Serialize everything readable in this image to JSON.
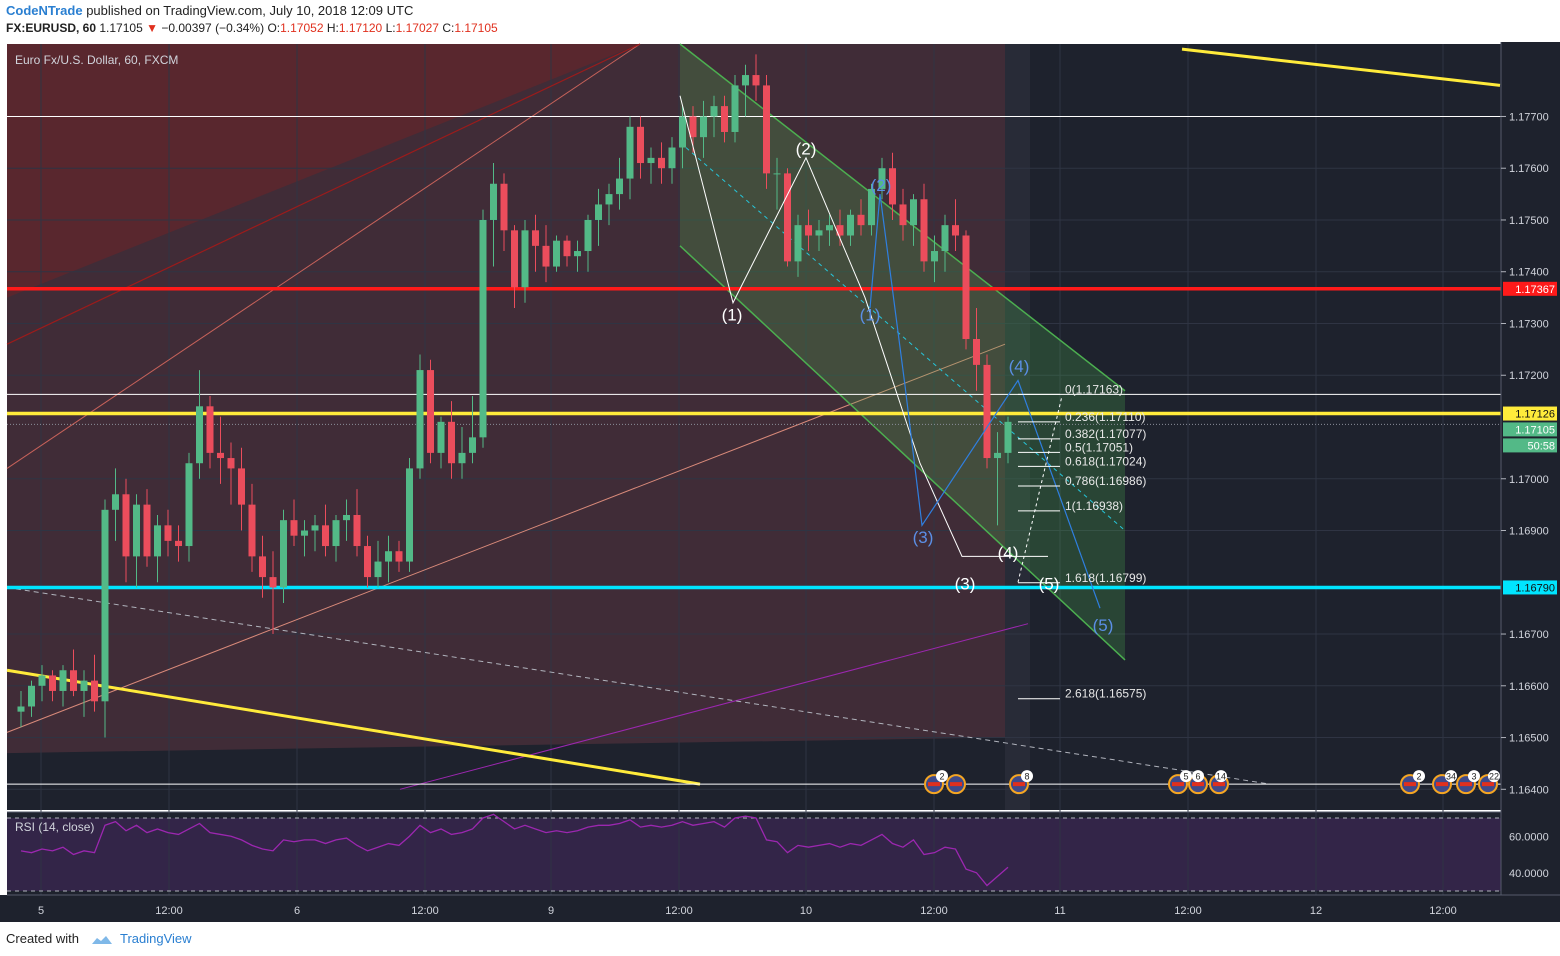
{
  "header": {
    "author": "CodeNTrade",
    "published_text": "published on TradingView.com, July 10, 2018 12:09 UTC",
    "symbol": "FX:EURUSD, 60",
    "last": "1.17105",
    "change": "−0.00397 (−0.34%)",
    "O_label": "O:",
    "O": "1.17052",
    "H_label": "H:",
    "H": "1.17120",
    "L_label": "L:",
    "L": "1.17027",
    "C_label": "C:",
    "C": "1.17105"
  },
  "footer": {
    "created_with": "Created with",
    "brand": "TradingView"
  },
  "colors": {
    "background": "#1e222d",
    "up": "#53b987",
    "down": "#eb4d5c",
    "red_line": "#ff1a1a",
    "yellow_line": "#ffeb3b",
    "cyan_line": "#00e5ff",
    "green_channel": "#4caf50",
    "rsi_line": "#9c27b0"
  },
  "chart_data": {
    "type": "candlestick",
    "title": "Euro Fx/U.S. Dollar, 60, FXCM",
    "y_axis_ticks": [
      "1.17700",
      "1.17600",
      "1.17500",
      "1.17400",
      "1.17300",
      "1.17200",
      "1.17000",
      "1.16900",
      "1.16700",
      "1.16600",
      "1.16500",
      "1.16400"
    ],
    "y_range": [
      1.1636,
      1.1784
    ],
    "x_axis_labels": [
      "5",
      "12:00",
      "6",
      "12:00",
      "9",
      "12:00",
      "10",
      "12:00",
      "11",
      "12:00",
      "12",
      "12:00"
    ],
    "price_tags": [
      {
        "value": "1.17367",
        "color": "#ff1a1a"
      },
      {
        "value": "1.17126",
        "color": "#ffeb3b"
      },
      {
        "value": "1.17105",
        "color": "#53b987"
      },
      {
        "value": "50:58",
        "color": "#53b987"
      },
      {
        "value": "1.16790",
        "color": "#00e5ff"
      }
    ],
    "horizontal_levels": [
      {
        "price": 1.17367,
        "color": "#ff1a1a"
      },
      {
        "price": 1.17126,
        "color": "#ffeb3b"
      },
      {
        "price": 1.1679,
        "color": "#00e5ff"
      },
      {
        "price": 1.177,
        "color": "#ffffff"
      },
      {
        "price": 1.17163,
        "color": "#ffffff"
      },
      {
        "price": 1.1641,
        "color": "#ffffff"
      }
    ],
    "fib_levels": [
      {
        "label": "0(1.17163)",
        "price": 1.17163
      },
      {
        "label": "0.236(1.17110)",
        "price": 1.1711
      },
      {
        "label": "0.382(1.17077)",
        "price": 1.17077
      },
      {
        "label": "0.5(1.17051)",
        "price": 1.17051
      },
      {
        "label": "0.618(1.17024)",
        "price": 1.17024
      },
      {
        "label": "0.786(1.16986)",
        "price": 1.16986
      },
      {
        "label": "1(1.16938)",
        "price": 1.16938
      },
      {
        "label": "1.618(1.16799)",
        "price": 1.16799
      },
      {
        "label": "2.618(1.16575)",
        "price": 1.16575
      }
    ],
    "wave_labels_white": [
      "(1)",
      "(2)",
      "(3)",
      "(4)",
      "(5)"
    ],
    "wave_labels_blue": [
      "(1)",
      "(2)",
      "(3)",
      "(4)",
      "(5)"
    ],
    "candles": [
      [
        1.1655,
        1.1659,
        1.1652,
        1.1656
      ],
      [
        1.1656,
        1.1661,
        1.1654,
        1.166
      ],
      [
        1.166,
        1.1664,
        1.1657,
        1.1662
      ],
      [
        1.1662,
        1.1663,
        1.1657,
        1.1659
      ],
      [
        1.1659,
        1.1664,
        1.1656,
        1.1663
      ],
      [
        1.1663,
        1.1667,
        1.1658,
        1.1659
      ],
      [
        1.1659,
        1.1663,
        1.1654,
        1.1661
      ],
      [
        1.1661,
        1.1666,
        1.1655,
        1.1657
      ],
      [
        1.1657,
        1.1696,
        1.165,
        1.1694
      ],
      [
        1.1694,
        1.1702,
        1.1688,
        1.1697
      ],
      [
        1.1697,
        1.17,
        1.168,
        1.1685
      ],
      [
        1.1685,
        1.1697,
        1.1679,
        1.1695
      ],
      [
        1.1695,
        1.1698,
        1.1683,
        1.1685
      ],
      [
        1.1685,
        1.1693,
        1.168,
        1.1691
      ],
      [
        1.1691,
        1.1694,
        1.1685,
        1.1688
      ],
      [
        1.1688,
        1.1691,
        1.1684,
        1.1687
      ],
      [
        1.1687,
        1.1705,
        1.1684,
        1.1703
      ],
      [
        1.1703,
        1.1721,
        1.17,
        1.1714
      ],
      [
        1.1714,
        1.1716,
        1.1702,
        1.1705
      ],
      [
        1.1705,
        1.1712,
        1.1699,
        1.1704
      ],
      [
        1.1704,
        1.1707,
        1.1695,
        1.1702
      ],
      [
        1.1702,
        1.1706,
        1.169,
        1.1695
      ],
      [
        1.1695,
        1.1699,
        1.1682,
        1.1685
      ],
      [
        1.1685,
        1.1689,
        1.1677,
        1.1681
      ],
      [
        1.1681,
        1.1686,
        1.167,
        1.1679
      ],
      [
        1.1679,
        1.1694,
        1.1676,
        1.1692
      ],
      [
        1.1692,
        1.1696,
        1.1687,
        1.1689
      ],
      [
        1.1689,
        1.1692,
        1.1685,
        1.169
      ],
      [
        1.169,
        1.1693,
        1.1686,
        1.1691
      ],
      [
        1.1691,
        1.1695,
        1.1685,
        1.1687
      ],
      [
        1.1687,
        1.1693,
        1.1684,
        1.1692
      ],
      [
        1.1692,
        1.1696,
        1.1688,
        1.1693
      ],
      [
        1.1693,
        1.1698,
        1.1685,
        1.1687
      ],
      [
        1.1687,
        1.1689,
        1.1679,
        1.1681
      ],
      [
        1.1681,
        1.1688,
        1.1679,
        1.1684
      ],
      [
        1.1684,
        1.1689,
        1.168,
        1.1686
      ],
      [
        1.1686,
        1.1688,
        1.1682,
        1.1684
      ],
      [
        1.1684,
        1.1704,
        1.1682,
        1.1702
      ],
      [
        1.1702,
        1.1724,
        1.17,
        1.1721
      ],
      [
        1.1721,
        1.1723,
        1.1703,
        1.1705
      ],
      [
        1.1705,
        1.1712,
        1.1702,
        1.1711
      ],
      [
        1.1711,
        1.1715,
        1.17,
        1.1703
      ],
      [
        1.1703,
        1.171,
        1.17,
        1.1705
      ],
      [
        1.1705,
        1.1716,
        1.1703,
        1.1708
      ],
      [
        1.1708,
        1.1752,
        1.1706,
        1.175
      ],
      [
        1.175,
        1.1761,
        1.1741,
        1.1757
      ],
      [
        1.1757,
        1.1759,
        1.1744,
        1.1748
      ],
      [
        1.1748,
        1.1749,
        1.1733,
        1.1737
      ],
      [
        1.1737,
        1.175,
        1.1734,
        1.1748
      ],
      [
        1.1748,
        1.1751,
        1.174,
        1.1745
      ],
      [
        1.1745,
        1.1749,
        1.1738,
        1.1741
      ],
      [
        1.1741,
        1.1747,
        1.174,
        1.1746
      ],
      [
        1.1746,
        1.1747,
        1.1741,
        1.1743
      ],
      [
        1.1743,
        1.1746,
        1.174,
        1.1744
      ],
      [
        1.1744,
        1.1751,
        1.174,
        1.175
      ],
      [
        1.175,
        1.1756,
        1.1745,
        1.1753
      ],
      [
        1.1753,
        1.1757,
        1.1749,
        1.1755
      ],
      [
        1.1755,
        1.1762,
        1.1752,
        1.1758
      ],
      [
        1.1758,
        1.177,
        1.1754,
        1.1768
      ],
      [
        1.1768,
        1.177,
        1.1758,
        1.1761
      ],
      [
        1.1761,
        1.1764,
        1.1757,
        1.1762
      ],
      [
        1.1762,
        1.1765,
        1.1757,
        1.176
      ],
      [
        1.176,
        1.1766,
        1.1757,
        1.1764
      ],
      [
        1.1764,
        1.1772,
        1.176,
        1.177
      ],
      [
        1.177,
        1.1772,
        1.1763,
        1.1766
      ],
      [
        1.1766,
        1.1773,
        1.1762,
        1.177
      ],
      [
        1.177,
        1.1774,
        1.1766,
        1.1772
      ],
      [
        1.1772,
        1.1774,
        1.1765,
        1.1767
      ],
      [
        1.1767,
        1.1778,
        1.1765,
        1.1776
      ],
      [
        1.1776,
        1.178,
        1.177,
        1.1778
      ],
      [
        1.1778,
        1.1782,
        1.1773,
        1.1776
      ],
      [
        1.1776,
        1.1778,
        1.1756,
        1.1759
      ],
      [
        1.1759,
        1.1762,
        1.1752,
        1.1759
      ],
      [
        1.1759,
        1.176,
        1.1741,
        1.1742
      ],
      [
        1.1742,
        1.1751,
        1.1739,
        1.1749
      ],
      [
        1.1749,
        1.1752,
        1.1744,
        1.1747
      ],
      [
        1.1747,
        1.175,
        1.1744,
        1.1748
      ],
      [
        1.1748,
        1.1751,
        1.1745,
        1.1749
      ],
      [
        1.1749,
        1.1752,
        1.1745,
        1.1747
      ],
      [
        1.1747,
        1.1752,
        1.1745,
        1.1751
      ],
      [
        1.1751,
        1.1754,
        1.1747,
        1.1749
      ],
      [
        1.1749,
        1.1757,
        1.1747,
        1.1756
      ],
      [
        1.1756,
        1.1762,
        1.1754,
        1.176
      ],
      [
        1.176,
        1.1763,
        1.175,
        1.1753
      ],
      [
        1.1753,
        1.1756,
        1.1746,
        1.1749
      ],
      [
        1.1749,
        1.1755,
        1.1745,
        1.1754
      ],
      [
        1.1754,
        1.1757,
        1.174,
        1.1742
      ],
      [
        1.1742,
        1.1747,
        1.1738,
        1.1744
      ],
      [
        1.1744,
        1.1751,
        1.174,
        1.1749
      ],
      [
        1.1749,
        1.1754,
        1.1744,
        1.1747
      ],
      [
        1.1747,
        1.1748,
        1.1725,
        1.1727
      ],
      [
        1.1727,
        1.1733,
        1.1717,
        1.1722
      ],
      [
        1.1722,
        1.1724,
        1.1702,
        1.1704
      ],
      [
        1.1704,
        1.1709,
        1.1691,
        1.1705
      ],
      [
        1.1705,
        1.1712,
        1.1703,
        1.1711
      ]
    ],
    "rsi": {
      "label": "RSI (14, close)",
      "ticks": [
        "60.0000",
        "40.0000"
      ],
      "range": [
        30,
        70
      ],
      "bands": [
        70,
        30
      ],
      "values": [
        52,
        51,
        53,
        52,
        54,
        50,
        52,
        51,
        66,
        68,
        63,
        66,
        62,
        64,
        62,
        61,
        64,
        67,
        62,
        61,
        60,
        58,
        55,
        53,
        52,
        58,
        57,
        58,
        58,
        56,
        58,
        59,
        55,
        52,
        54,
        56,
        55,
        60,
        66,
        62,
        64,
        61,
        62,
        64,
        70,
        72,
        68,
        64,
        66,
        64,
        62,
        63,
        62,
        63,
        65,
        66,
        66,
        67,
        69,
        65,
        66,
        65,
        66,
        68,
        66,
        67,
        68,
        65,
        70,
        71,
        70,
        58,
        57,
        51,
        55,
        54,
        55,
        56,
        54,
        56,
        55,
        58,
        61,
        56,
        54,
        58,
        50,
        51,
        54,
        53,
        42,
        40,
        33,
        38,
        43
      ]
    },
    "event_badges": [
      "2",
      "8",
      "5",
      "6",
      "14",
      "2",
      "34",
      "3",
      "22"
    ]
  }
}
